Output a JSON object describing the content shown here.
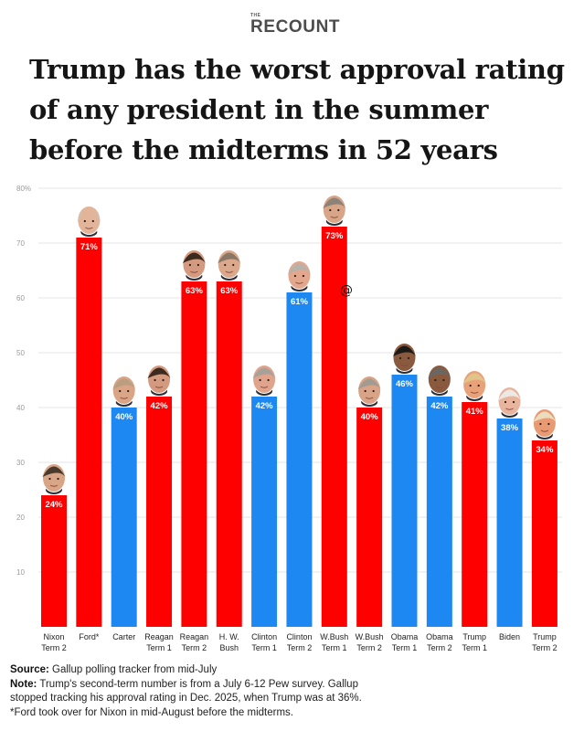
{
  "brand": {
    "prefix": "THE",
    "name": "RECOUNT"
  },
  "title_lines": [
    "Trump has the worst approval rating",
    "of any president in the summer",
    "before the midterms in 52 years"
  ],
  "stray_mark": "@",
  "footer": {
    "source_label": "Source:",
    "source_text": " Gallup polling tracker from mid-July",
    "note_label": "Note:",
    "note_text_1": " Trump's second-term number is from a July 6-12 Pew survey. Gallup",
    "note_text_2": "stopped tracking his approval rating in Dec. 2025, when Trump was at 36%.",
    "ford_note": "*Ford took over for Nixon in mid-August before the midterms."
  },
  "colors": {
    "republican": "#ff0000",
    "democrat": "#1e88f2",
    "grid": "#dcdcdc",
    "axis_text": "#9a9a9a",
    "bar_label": "#ffffff"
  },
  "chart_data": {
    "type": "bar",
    "title": "Trump has the worst approval rating of any president in the summer before the midterms in 52 years",
    "xlabel": "",
    "ylabel": "",
    "ylim": [
      0,
      80
    ],
    "yticks": [
      10,
      20,
      30,
      40,
      50,
      60,
      70,
      80
    ],
    "ytick_labels": [
      "10",
      "20",
      "30",
      "40",
      "50",
      "60",
      "70",
      "80%"
    ],
    "grid": true,
    "legend": "none",
    "categories": [
      [
        "Nixon",
        "Term 2"
      ],
      [
        "Ford*"
      ],
      [
        "Carter"
      ],
      [
        "Reagan",
        "Term 1"
      ],
      [
        "Reagan",
        "Term 2"
      ],
      [
        "H. W.",
        "Bush"
      ],
      [
        "Clinton",
        "Term 1"
      ],
      [
        "Clinton",
        "Term 2"
      ],
      [
        "W.Bush",
        "Term 1"
      ],
      [
        "W.Bush",
        "Term 2"
      ],
      [
        "Obama",
        "Term 1"
      ],
      [
        "Obama",
        "Term 2"
      ],
      [
        "Trump",
        "Term 1"
      ],
      [
        "Biden"
      ],
      [
        "Trump",
        "Term 2"
      ]
    ],
    "values": [
      24,
      71,
      40,
      42,
      63,
      63,
      42,
      61,
      73,
      40,
      46,
      42,
      41,
      38,
      34
    ],
    "value_labels": [
      "24%",
      "71%",
      "40%",
      "42%",
      "63%",
      "63%",
      "42%",
      "61%",
      "73%",
      "40%",
      "46%",
      "42%",
      "41%",
      "38%",
      "34%"
    ],
    "party": [
      "R",
      "R",
      "D",
      "R",
      "R",
      "R",
      "D",
      "D",
      "R",
      "R",
      "D",
      "D",
      "R",
      "D",
      "R"
    ],
    "portraits": [
      {
        "hair": "#4a3a2e",
        "skin": "#d8a587",
        "bald": false
      },
      {
        "hair": "#c9c2b6",
        "skin": "#e2b49a",
        "bald": true
      },
      {
        "hair": "#b99f80",
        "skin": "#d9a586",
        "bald": false
      },
      {
        "hair": "#3b2a20",
        "skin": "#d49a7f",
        "bald": false
      },
      {
        "hair": "#3b2a20",
        "skin": "#d49a7f",
        "bald": false
      },
      {
        "hair": "#8a7866",
        "skin": "#dca88c",
        "bald": false
      },
      {
        "hair": "#a7a19a",
        "skin": "#e0a48c",
        "bald": false
      },
      {
        "hair": "#b8b2aa",
        "skin": "#e3a78e",
        "bald": false
      },
      {
        "hair": "#8c8278",
        "skin": "#d9a588",
        "bald": false
      },
      {
        "hair": "#a39b92",
        "skin": "#d8a386",
        "bald": false
      },
      {
        "hair": "#1c1a18",
        "skin": "#8a5a3f",
        "bald": false
      },
      {
        "hair": "#6a6662",
        "skin": "#8a5a3f",
        "bald": false
      },
      {
        "hair": "#e2c48a",
        "skin": "#e8a27a",
        "bald": false
      },
      {
        "hair": "#ece9e4",
        "skin": "#e8b49d",
        "bald": false
      },
      {
        "hair": "#eadcbc",
        "skin": "#e89a72",
        "bald": false
      }
    ]
  }
}
